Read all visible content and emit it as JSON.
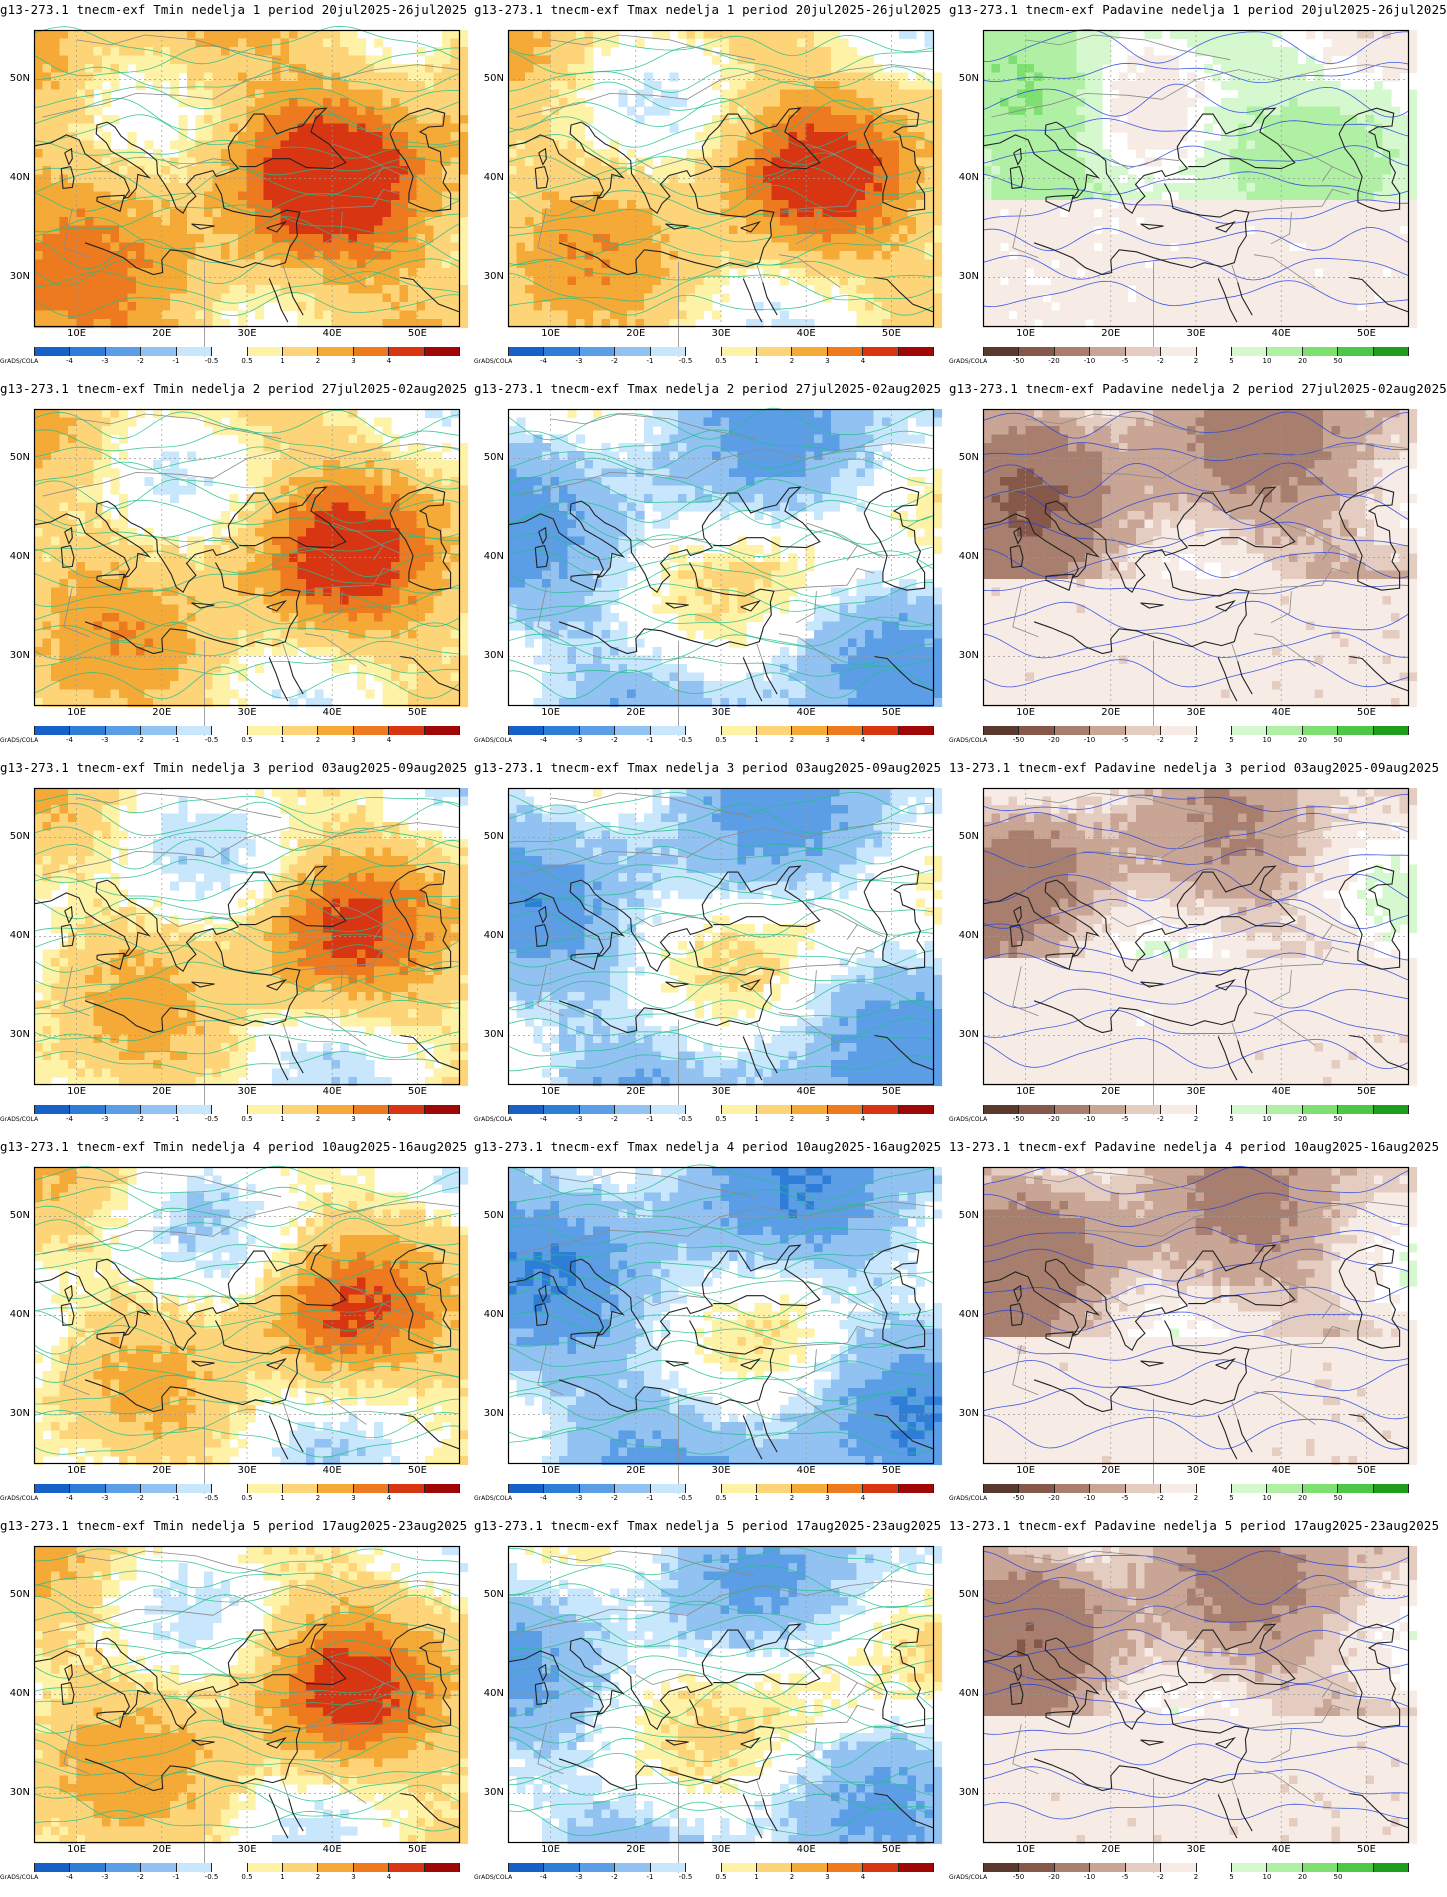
{
  "grads_credit": "GrADS/COLA",
  "lat_labels": [
    "50N",
    "40N",
    "30N"
  ],
  "lon_labels": [
    "10E",
    "20E",
    "30E",
    "40E",
    "50E"
  ],
  "scales": {
    "temp": {
      "labels": [
        "-4",
        "-3",
        "-2",
        "-1",
        "-0.5",
        "0.5",
        "1",
        "2",
        "3",
        "4"
      ],
      "colors": [
        "#1660c8",
        "#2e7ed8",
        "#5c9ee6",
        "#91c2f2",
        "#c8e6fc",
        "#ffffff",
        "#fdf2a6",
        "#fdd478",
        "#f5aa38",
        "#ee7a1f",
        "#d83612",
        "#a00808"
      ]
    },
    "precip": {
      "labels": [
        "-50",
        "-20",
        "-10",
        "-5",
        "-2",
        "2",
        "5",
        "10",
        "20",
        "50"
      ],
      "colors": [
        "#5a3a2e",
        "#86584a",
        "#a87e6e",
        "#c9a596",
        "#e5ccc0",
        "#f6ebe5",
        "#ffffff",
        "#d6f8cf",
        "#b0f0a4",
        "#7ee070",
        "#4cc846",
        "#1f9e1e"
      ]
    }
  },
  "panels": [
    {
      "title": "g13-273.1 tnecm-exf Tmin nedelja 1 period 20jul2025-26jul2025",
      "var": "tmin",
      "scale": "temp",
      "anomaly_level": 0.85
    },
    {
      "title": "g13-273.1 tnecm-exf Tmax nedelja 1 period 20jul2025-26jul2025",
      "var": "tmax",
      "scale": "temp",
      "anomaly_level": 0.55
    },
    {
      "title": "g13-273.1 tnecm-exf Padavine nedelja 1 period 20jul2025-26jul2025",
      "var": "precip",
      "scale": "precip",
      "anomaly_level": 0.6
    },
    {
      "title": "g13-273.1 tnecm-exf Tmin nedelja 2 period 27jul2025-02aug2025",
      "var": "tmin",
      "scale": "temp",
      "anomaly_level": 0.55
    },
    {
      "title": "g13-273.1 tnecm-exf Tmax nedelja 2 period 27jul2025-02aug2025",
      "var": "tmax",
      "scale": "temp",
      "anomaly_level": -0.4
    },
    {
      "title": "g13-273.1 tnecm-exf Padavine nedelja 2 period 27jul2025-02aug2025",
      "var": "precip",
      "scale": "precip",
      "anomaly_level": -0.5
    },
    {
      "title": "g13-273.1 tnecm-exf Tmin nedelja 3 period 03aug2025-09aug2025",
      "var": "tmin",
      "scale": "temp",
      "anomaly_level": 0.35
    },
    {
      "title": "g13-273.1 tnecm-exf Tmax nedelja 3 period 03aug2025-09aug2025",
      "var": "tmax",
      "scale": "temp",
      "anomaly_level": -0.45
    },
    {
      "title": "13-273.1 tnecm-exf Padavine nedelja 3 period 03aug2025-09aug2025",
      "var": "precip",
      "scale": "precip",
      "anomaly_level": -0.2
    },
    {
      "title": "g13-273.1 tnecm-exf Tmin nedelja 4 period 10aug2025-16aug2025",
      "var": "tmin",
      "scale": "temp",
      "anomaly_level": 0.3
    },
    {
      "title": "g13-273.1 tnecm-exf Tmax nedelja 4 period 10aug2025-16aug2025",
      "var": "tmax",
      "scale": "temp",
      "anomaly_level": -0.6
    },
    {
      "title": "13-273.1 tnecm-exf Padavine nedelja 4 period 10aug2025-16aug2025",
      "var": "precip",
      "scale": "precip",
      "anomaly_level": -0.35
    },
    {
      "title": "g13-273.1 tnecm-exf Tmin nedelja 5 period 17aug2025-23aug2025",
      "var": "tmin",
      "scale": "temp",
      "anomaly_level": 0.45
    },
    {
      "title": "g13-273.1 tnecm-exf Tmax nedelja 5 period 17aug2025-23aug2025",
      "var": "tmax",
      "scale": "temp",
      "anomaly_level": -0.3
    },
    {
      "title": "13-273.1 tnecm-exf Padavine nedelja 5 period 17aug2025-23aug2025",
      "var": "precip",
      "scale": "precip",
      "anomaly_level": -0.4
    }
  ]
}
